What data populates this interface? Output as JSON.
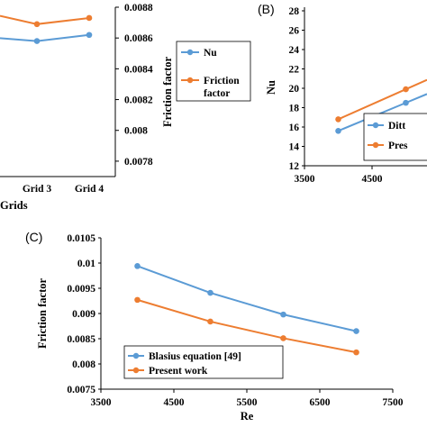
{
  "colors": {
    "blue": "#5b9bd5",
    "orange": "#ed7d31"
  },
  "chart_data": [
    {
      "panel": "",
      "type": "line",
      "categories": [
        "Grid 3",
        "Grid 4"
      ],
      "xlabel": "Grids",
      "ylabel_right": "Friction factor",
      "y2_ticks": [
        "0.0088",
        "0.0086",
        "0.0084",
        "0.0082",
        "0.008",
        "0.0078"
      ],
      "y2lim": [
        0.0077,
        0.0088
      ],
      "series": [
        {
          "name": "Nu",
          "axis": "left",
          "values": [
            0.00858,
            0.00862
          ],
          "partial": true
        },
        {
          "name": "Friction factor",
          "axis": "right",
          "values": [
            0.00869,
            0.00873
          ],
          "partial": true
        }
      ],
      "legend": {
        "items": [
          "Nu",
          "Friction",
          "factor"
        ]
      }
    },
    {
      "panel": "(B)",
      "type": "line",
      "ylabel": "Nu",
      "ylim": [
        12,
        28
      ],
      "y_ticks": [
        "28",
        "26",
        "24",
        "22",
        "20",
        "18",
        "16",
        "14",
        "12"
      ],
      "x_ticks": [
        "3500",
        "4500"
      ],
      "series": [
        {
          "name": "Dittus",
          "x": [
            4000,
            5000
          ],
          "values": [
            15.6,
            18.5
          ]
        },
        {
          "name": "Present",
          "x": [
            4000,
            5000
          ],
          "values": [
            16.8,
            19.9
          ]
        }
      ],
      "legend": {
        "items": [
          "Ditt",
          "Pres"
        ]
      }
    },
    {
      "panel": "(C)",
      "type": "line",
      "xlabel": "Re",
      "ylabel": "Friction factor",
      "xlim": [
        3500,
        7500
      ],
      "ylim": [
        0.0075,
        0.0105
      ],
      "x_ticks": [
        "3500",
        "4500",
        "5500",
        "6500",
        "7500"
      ],
      "y_ticks": [
        "0.0105",
        "0.01",
        "0.0095",
        "0.009",
        "0.0085",
        "0.008",
        "0.0075"
      ],
      "series": [
        {
          "name": "Blasius equation [49]",
          "x": [
            4000,
            5000,
            6000,
            7000
          ],
          "values": [
            0.00994,
            0.00941,
            0.00898,
            0.00865
          ]
        },
        {
          "name": "Present work",
          "x": [
            4000,
            5000,
            6000,
            7000
          ],
          "values": [
            0.00927,
            0.00884,
            0.00851,
            0.00823
          ]
        }
      ]
    }
  ]
}
